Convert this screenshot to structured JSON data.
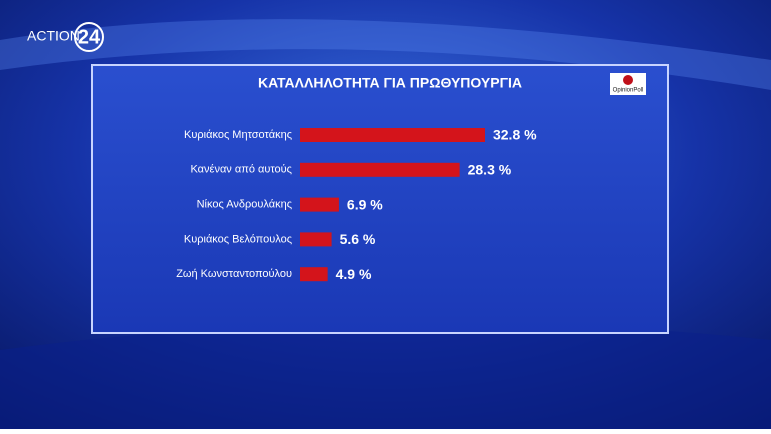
{
  "chart_data": {
    "type": "bar",
    "orientation": "horizontal",
    "title": "ΚΑΤΑΛΛΗΛΟΤΗΤΑ ΓΙΑ ΠΡΩΘΥΠΟΥΡΓΙΑ",
    "categories": [
      "Κυριάκος Μητσοτάκης",
      "Κανέναν από αυτούς",
      "Νίκος Ανδρουλάκης",
      "Κυριάκος Βελόπουλος",
      "Ζωή Κωνσταντοπούλου"
    ],
    "values": [
      32.8,
      28.3,
      6.9,
      5.6,
      4.9
    ],
    "value_labels": [
      "32.8 %",
      "28.3 %",
      "6.9 %",
      "5.6 %",
      "4.9 %"
    ],
    "color": "#d4141b"
  },
  "channel_logo": {
    "text": "ACTION",
    "number": "24"
  },
  "source_logo": "OpinionPoll"
}
